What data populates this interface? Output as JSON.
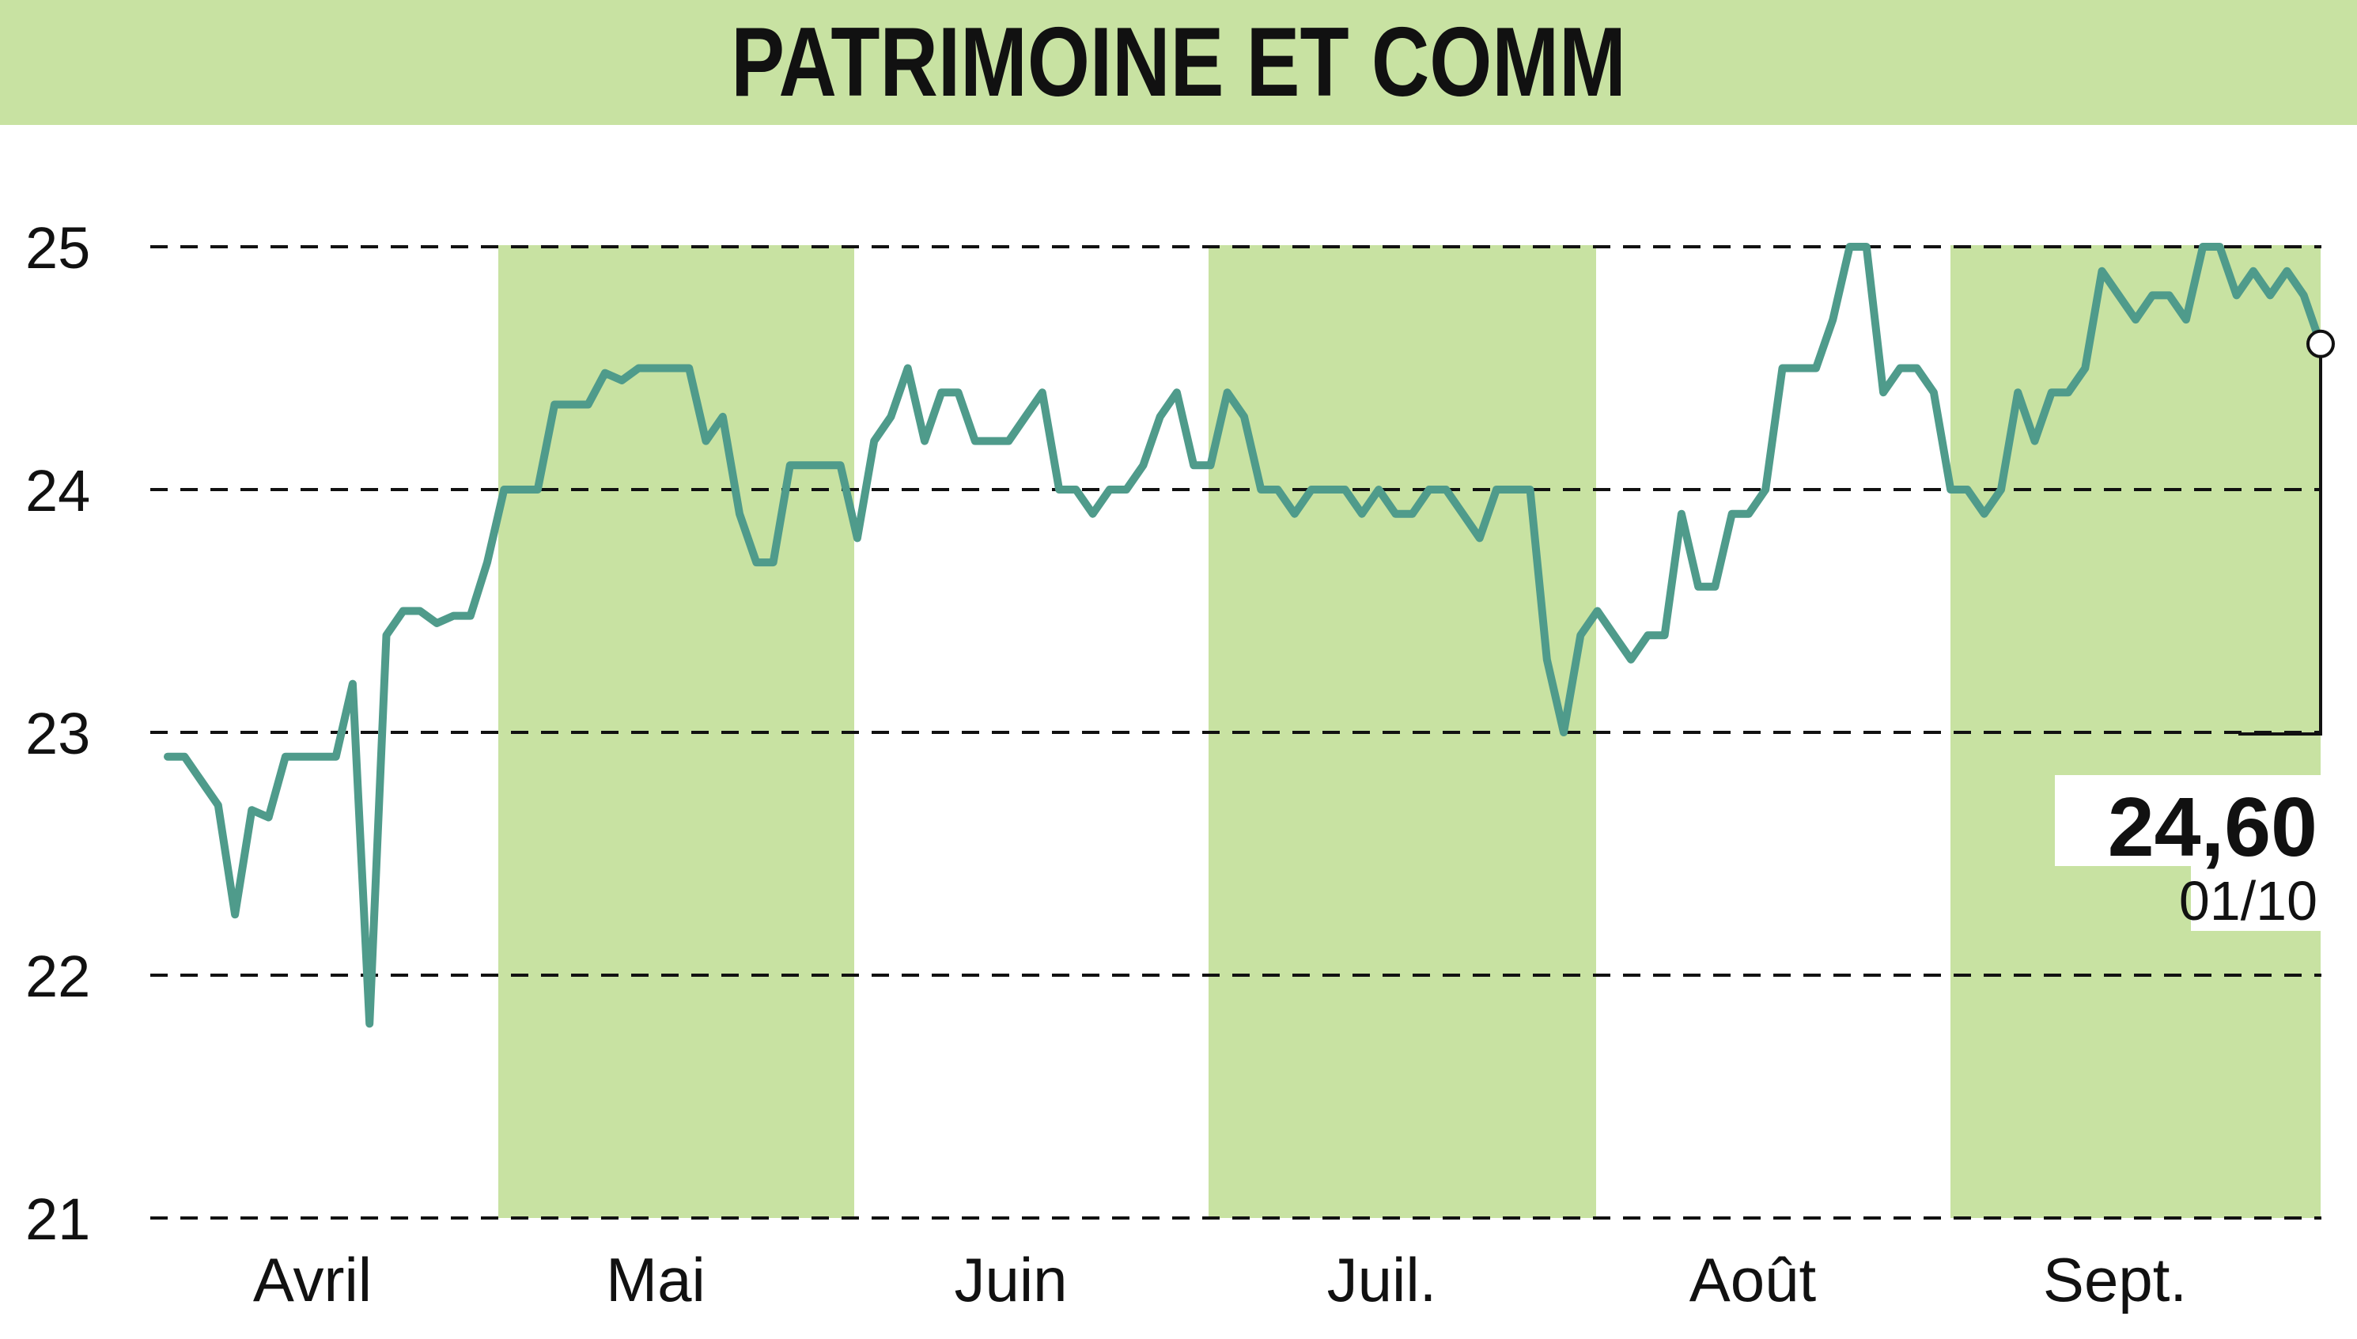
{
  "title": "PATRIMOINE ET COMM",
  "colors": {
    "band": "#c8e2a2",
    "line": "#4f9b8b",
    "grid": "#111111",
    "text": "#111111"
  },
  "chart_data": {
    "type": "line",
    "title": "PATRIMOINE ET COMM",
    "ylim": [
      21,
      25
    ],
    "yticks": [
      "25",
      "24",
      "23",
      "22",
      "21"
    ],
    "months": [
      "Avril",
      "Mai",
      "Juin",
      "Juil.",
      "Août",
      "Sept."
    ],
    "shaded_months": [
      "Mai",
      "Juil.",
      "Sept."
    ],
    "grid": "horizontal dashed",
    "last_value_label": "24,60",
    "last_date_label": "01/10",
    "series": [
      {
        "values": [
          22.9,
          22.9,
          22.8,
          22.7,
          22.25,
          22.68,
          22.65,
          22.9,
          22.9,
          22.9,
          22.9,
          23.2,
          21.8,
          23.4,
          23.5,
          23.5,
          23.45,
          23.48,
          23.48,
          23.7,
          24.0,
          24.0,
          24.0,
          24.35,
          24.35,
          24.35,
          24.48,
          24.45,
          24.5,
          24.5,
          24.5,
          24.5,
          24.2,
          24.3,
          23.9,
          23.7,
          23.7,
          24.1,
          24.1,
          24.1,
          24.1,
          23.8,
          24.2,
          24.3,
          24.5,
          24.2,
          24.4,
          24.4,
          24.2,
          24.2,
          24.2,
          24.3,
          24.4,
          24.0,
          24.0,
          23.9,
          24.0,
          24.0,
          24.1,
          24.3,
          24.4,
          24.1,
          24.1,
          24.4,
          24.3,
          24.0,
          24.0,
          23.9,
          24.0,
          24.0,
          24.0,
          23.9,
          24.0,
          23.9,
          23.9,
          24.0,
          24.0,
          23.9,
          23.8,
          24.0,
          24.0,
          24.0,
          23.3,
          23.0,
          23.4,
          23.5,
          23.4,
          23.3,
          23.4,
          23.4,
          23.9,
          23.6,
          23.6,
          23.9,
          23.9,
          24.0,
          24.5,
          24.5,
          24.5,
          24.7,
          25.0,
          25.0,
          24.4,
          24.5,
          24.5,
          24.4,
          24.0,
          24.0,
          23.9,
          24.0,
          24.4,
          24.2,
          24.4,
          24.4,
          24.5,
          24.9,
          24.8,
          24.7,
          24.8,
          24.8,
          24.7,
          25.0,
          25.0,
          24.8,
          24.9,
          24.8,
          24.9,
          24.8,
          24.6
        ]
      }
    ]
  }
}
